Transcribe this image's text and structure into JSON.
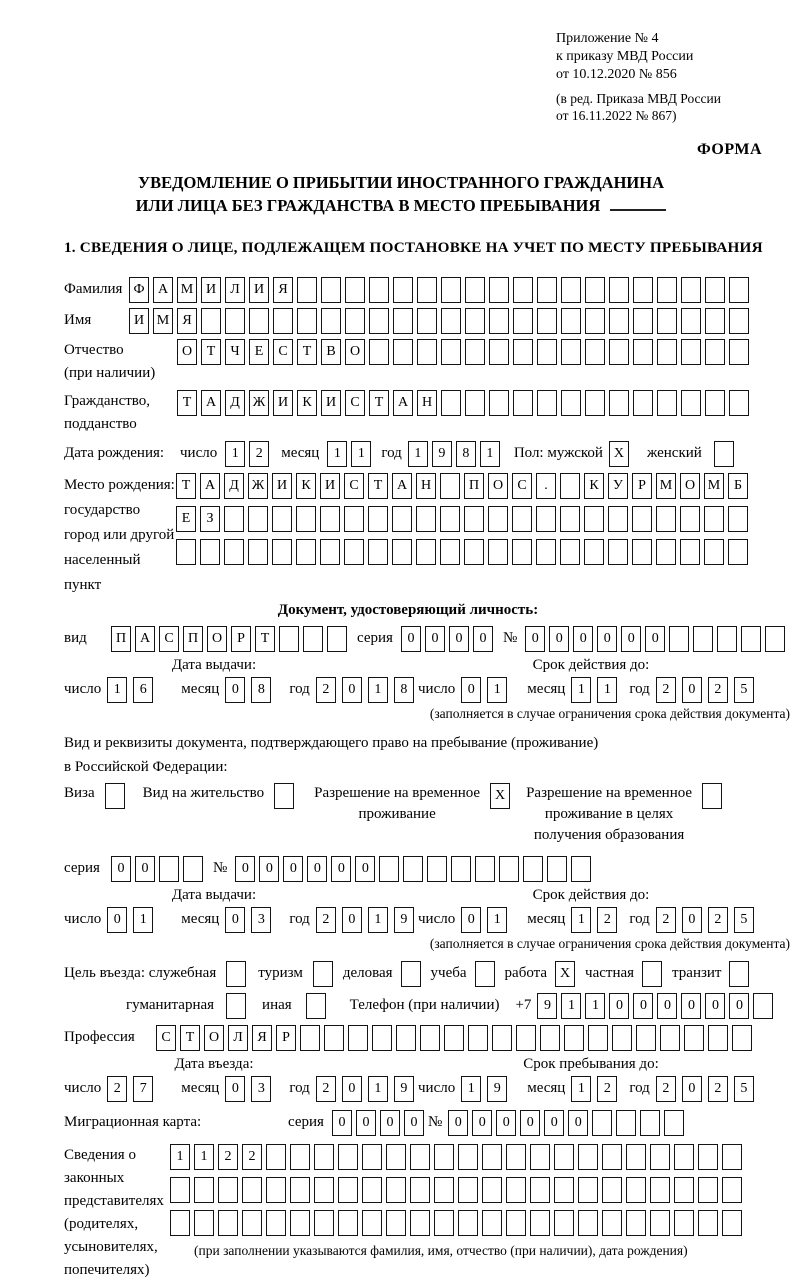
{
  "header": {
    "appendix1": "Приложение № 4",
    "appendix2": "к приказу МВД России",
    "appendix3": "от 10.12.2020 № 856",
    "revision1": "(в ред. Приказа МВД России",
    "revision2": "от 16.11.2022 № 867)",
    "form": "ФОРМА",
    "title1": "УВЕДОМЛЕНИЕ О ПРИБЫТИИ ИНОСТРАННОГО ГРАЖДАНИНА",
    "title2": "ИЛИ ЛИЦА БЕЗ ГРАЖДАНСТВА В МЕСТО ПРЕБЫВАНИЯ",
    "section1": "1. СВЕДЕНИЯ О ЛИЦЕ, ПОДЛЕЖАЩЕМ ПОСТАНОВКЕ НА УЧЕТ ПО МЕСТУ ПРЕБЫВАНИЯ"
  },
  "common": {
    "day": "число",
    "month": "месяц",
    "year": "год",
    "series": "серия",
    "number_sign": "№",
    "issue_date": "Дата выдачи:",
    "validity": "Срок действия до:",
    "validity_note": "(заполняется в случае ограничения срока действия документа)"
  },
  "labels": {
    "surname": "Фамилия",
    "given_name": "Имя",
    "patronymic1": "Отчество",
    "patronymic2": "(при наличии)",
    "citizenship1": "Гражданство,",
    "citizenship2": "подданство",
    "birth_date": "Дата рождения:",
    "sex": "Пол: мужской",
    "female": "женский",
    "birth_place": "Место рождения:",
    "birth_place_sub1": "государство",
    "birth_place_sub2": "город или другой",
    "birth_place_sub3": "населенный пункт",
    "id_heading": "Документ, удостоверяющий личность:",
    "id_type": "вид",
    "residence_intro1": "Вид и реквизиты документа, подтверждающего право на пребывание (проживание)",
    "residence_intro2": "в Российской Федерации:",
    "visa": "Виза",
    "residence_permit": "Вид на жительство",
    "temp1": "Разрешение на временное",
    "temp2": "проживание",
    "edu1": "Разрешение на временное",
    "edu2": "проживание в целях",
    "edu3": "получения образования",
    "purpose_official": "Цель въезда: служебная",
    "purpose_tourism": "туризм",
    "purpose_business": "деловая",
    "purpose_study": "учеба",
    "purpose_work": "работа",
    "purpose_private": "частная",
    "purpose_transit": "транзит",
    "purpose_humanitarian": "гуманитарная",
    "purpose_other": "иная",
    "phone": "Телефон (при наличии)",
    "phone_prefix": "+7",
    "profession": "Профессия",
    "entry_date": "Дата въезда:",
    "stay_until": "Срок пребывания до:",
    "migration_card": "Миграционная карта:",
    "legal1": "Сведения о",
    "legal2": "законных",
    "legal3": "представителях",
    "legal4": "(родителях,",
    "legal5": "усыновителях,",
    "legal6": "попечителях)",
    "legal_note": "(при заполнении указываются фамилия, имя, отчество (при наличии), дата рождения)"
  },
  "cells": {
    "surname": {
      "t": "ФАМИЛИЯ",
      "n": 26
    },
    "given_name": {
      "t": "ИМЯ",
      "n": 26
    },
    "patronymic": {
      "t": "ОТЧЕСТВО",
      "n": 24
    },
    "citizenship": {
      "t": "ТАДЖИКИСТАН",
      "n": 24
    },
    "birth_day": {
      "t": "12",
      "n": 2
    },
    "birth_month": {
      "t": "11",
      "n": 2
    },
    "birth_year": {
      "t": "1981",
      "n": 4
    },
    "sex_male": {
      "t": "X",
      "n": 1
    },
    "sex_female": {
      "t": "",
      "n": 1
    },
    "birthplace_row1": {
      "t": "ТАДЖИКИСТАН ПОС. КУРМОМБ",
      "n": 24
    },
    "birthplace_row2": {
      "t": "ЕЗ",
      "n": 24
    },
    "birthplace_row3": {
      "t": "",
      "n": 24
    },
    "id_type": {
      "t": "ПАСПОРТ",
      "n": 10
    },
    "id_series": {
      "t": "0000",
      "n": 4
    },
    "id_number": {
      "t": "000000",
      "n": 11
    },
    "id_issue_day": {
      "t": "16",
      "n": 2
    },
    "id_issue_month": {
      "t": "08",
      "n": 2
    },
    "id_issue_year": {
      "t": "2018",
      "n": 4
    },
    "id_expiry_day": {
      "t": "01",
      "n": 2
    },
    "id_expiry_month": {
      "t": "11",
      "n": 2
    },
    "id_expiry_year": {
      "t": "2025",
      "n": 4
    },
    "visa_box": {
      "t": "",
      "n": 1
    },
    "residence_permit_box": {
      "t": "",
      "n": 1
    },
    "temp_permit_box": {
      "t": "X",
      "n": 1
    },
    "edu_permit_box": {
      "t": "",
      "n": 1
    },
    "rvp_series": {
      "t": "00",
      "n": 4
    },
    "rvp_number": {
      "t": "000000",
      "n": 15
    },
    "rvp_issue_day": {
      "t": "01",
      "n": 2
    },
    "rvp_issue_month": {
      "t": "03",
      "n": 2
    },
    "rvp_issue_year": {
      "t": "2019",
      "n": 4
    },
    "rvp_expiry_day": {
      "t": "01",
      "n": 2
    },
    "rvp_expiry_month": {
      "t": "12",
      "n": 2
    },
    "rvp_expiry_year": {
      "t": "2025",
      "n": 4
    },
    "purpose_official": {
      "t": "",
      "n": 1
    },
    "purpose_tourism": {
      "t": "",
      "n": 1
    },
    "purpose_business": {
      "t": "",
      "n": 1
    },
    "purpose_study": {
      "t": "",
      "n": 1
    },
    "purpose_work": {
      "t": "X",
      "n": 1
    },
    "purpose_private": {
      "t": "",
      "n": 1
    },
    "purpose_transit": {
      "t": "",
      "n": 1
    },
    "purpose_humanitarian": {
      "t": "",
      "n": 1
    },
    "purpose_other": {
      "t": "",
      "n": 1
    },
    "phone": {
      "t": "911000000",
      "n": 10
    },
    "profession": {
      "t": "СТОЛЯР",
      "n": 25
    },
    "entry_day": {
      "t": "27",
      "n": 2
    },
    "entry_month": {
      "t": "03",
      "n": 2
    },
    "entry_year": {
      "t": "2019",
      "n": 4
    },
    "stay_day": {
      "t": "19",
      "n": 2
    },
    "stay_month": {
      "t": "12",
      "n": 2
    },
    "stay_year": {
      "t": "2025",
      "n": 4
    },
    "mig_series": {
      "t": "0000",
      "n": 4
    },
    "mig_number": {
      "t": "000000",
      "n": 10
    },
    "legal_row1": {
      "t": "1122",
      "n": 24
    },
    "legal_row2": {
      "t": "",
      "n": 24
    },
    "legal_row3": {
      "t": "",
      "n": 24
    }
  }
}
